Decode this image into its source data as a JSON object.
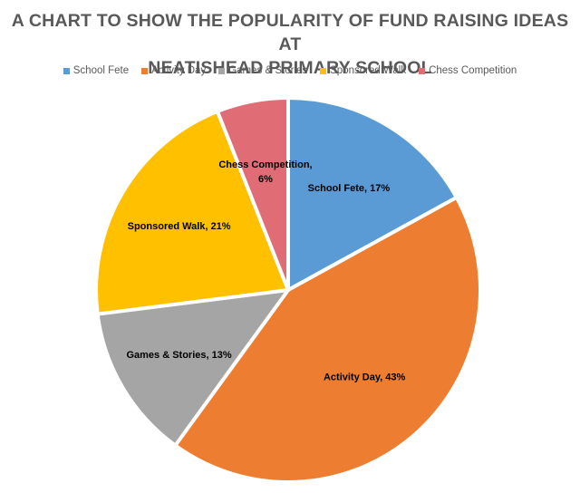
{
  "chart_data": {
    "type": "pie",
    "title_lines": [
      "A CHART TO SHOW THE POPULARITY OF FUND RAISING IDEAS AT",
      "NEATISHEAD PRIMARY SCHOOL"
    ],
    "legend_position": "top",
    "slices": [
      {
        "name": "School Fete",
        "value": 17,
        "color": "#5B9BD5",
        "label": [
          "School Fete, 17%"
        ]
      },
      {
        "name": "Activity Day",
        "value": 43,
        "color": "#ED7D31",
        "label": [
          "Activity Day, 43%"
        ]
      },
      {
        "name": "Games & Stories",
        "value": 13,
        "color": "#A5A5A5",
        "label": [
          "Games & Stories, 13%"
        ]
      },
      {
        "name": "Sponsored Walk",
        "value": 21,
        "color": "#FFC000",
        "label": [
          "Sponsored Walk, 21%"
        ]
      },
      {
        "name": "Chess Competition",
        "value": 6,
        "color": "#E06C75",
        "label": [
          "Chess Competition,",
          "6%"
        ]
      }
    ]
  }
}
